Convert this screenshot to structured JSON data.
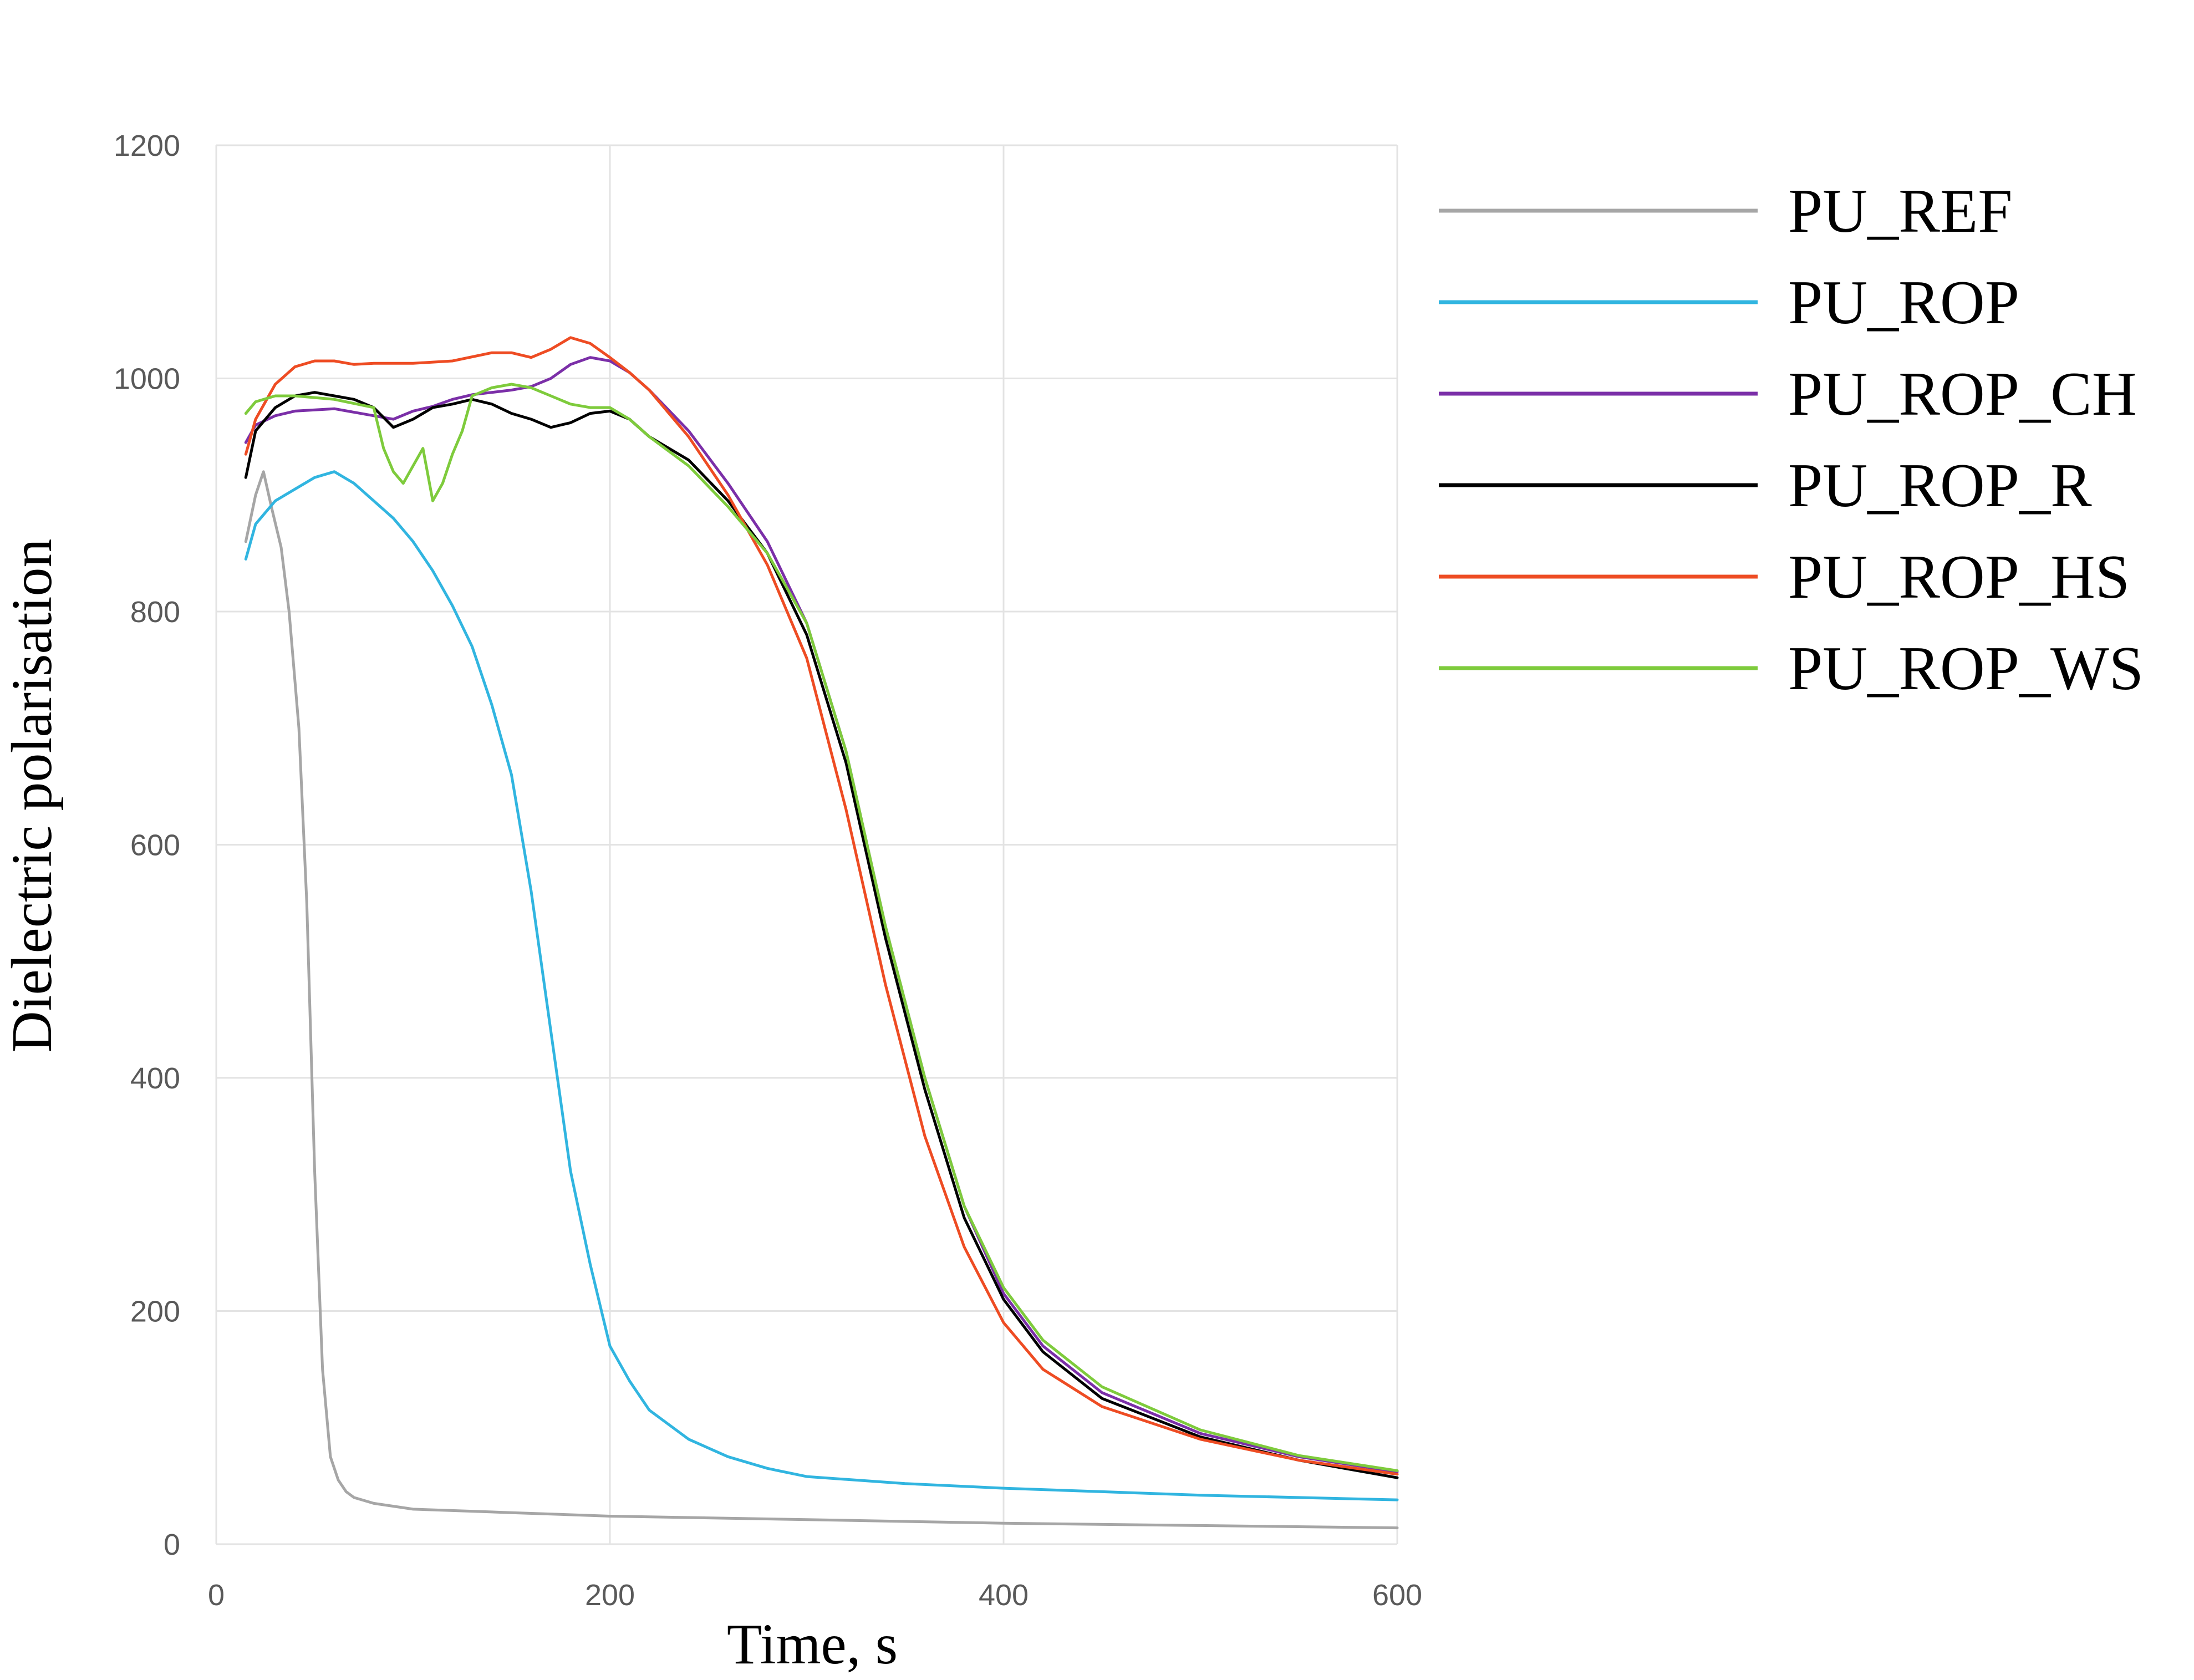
{
  "chart_data": {
    "type": "line",
    "title": "",
    "xlabel": "Time, s",
    "ylabel": "Dielectric polarisation",
    "xlim": [
      0,
      600
    ],
    "ylim": [
      0,
      1200
    ],
    "xticks": [
      0,
      200,
      400,
      600
    ],
    "yticks": [
      0,
      200,
      400,
      600,
      800,
      1000,
      1200
    ],
    "grid": true,
    "legend_position": "right",
    "series": [
      {
        "name": "PU_REF",
        "color": "#a6a6a6",
        "x": [
          15,
          20,
          24,
          28,
          33,
          37,
          42,
          46,
          50,
          54,
          58,
          62,
          66,
          70,
          80,
          100,
          150,
          200,
          300,
          400,
          500,
          600
        ],
        "y": [
          860,
          900,
          920,
          890,
          855,
          800,
          700,
          550,
          320,
          150,
          75,
          55,
          45,
          40,
          35,
          30,
          27,
          24,
          21,
          18,
          16,
          14
        ]
      },
      {
        "name": "PU_ROP",
        "color": "#31b5e0",
        "x": [
          15,
          20,
          30,
          40,
          50,
          60,
          70,
          80,
          90,
          100,
          110,
          120,
          130,
          140,
          150,
          155,
          160,
          165,
          170,
          175,
          180,
          190,
          200,
          210,
          220,
          240,
          260,
          280,
          300,
          350,
          400,
          450,
          500,
          550,
          600
        ],
        "y": [
          845,
          875,
          895,
          905,
          915,
          920,
          910,
          895,
          880,
          860,
          835,
          805,
          770,
          720,
          660,
          610,
          560,
          500,
          440,
          380,
          320,
          240,
          170,
          140,
          115,
          90,
          75,
          65,
          58,
          52,
          48,
          45,
          42,
          40,
          38
        ]
      },
      {
        "name": "PU_ROP_CH",
        "color": "#7b2fa8",
        "x": [
          15,
          20,
          30,
          40,
          60,
          80,
          90,
          100,
          110,
          120,
          130,
          140,
          150,
          160,
          170,
          180,
          190,
          200,
          210,
          220,
          240,
          260,
          280,
          300,
          320,
          340,
          360,
          380,
          400,
          420,
          450,
          500,
          550,
          600
        ],
        "y": [
          945,
          960,
          968,
          972,
          974,
          968,
          965,
          972,
          976,
          982,
          986,
          988,
          990,
          993,
          1000,
          1012,
          1018,
          1015,
          1005,
          990,
          955,
          910,
          860,
          790,
          680,
          530,
          400,
          290,
          215,
          170,
          130,
          95,
          75,
          62
        ]
      },
      {
        "name": "PU_ROP_R",
        "color": "#000000",
        "x": [
          15,
          20,
          30,
          40,
          50,
          60,
          70,
          80,
          90,
          100,
          110,
          120,
          130,
          140,
          150,
          160,
          170,
          180,
          190,
          200,
          210,
          220,
          240,
          260,
          280,
          300,
          320,
          340,
          360,
          380,
          400,
          420,
          450,
          500,
          550,
          600
        ],
        "y": [
          915,
          955,
          975,
          985,
          988,
          985,
          982,
          975,
          958,
          965,
          975,
          978,
          982,
          978,
          970,
          965,
          958,
          962,
          970,
          972,
          965,
          950,
          930,
          895,
          850,
          780,
          670,
          520,
          390,
          280,
          210,
          165,
          125,
          92,
          72,
          57
        ]
      },
      {
        "name": "PU_ROP_HS",
        "color": "#ee4c23",
        "x": [
          15,
          20,
          30,
          40,
          50,
          60,
          70,
          80,
          100,
          120,
          140,
          150,
          160,
          170,
          180,
          190,
          200,
          210,
          220,
          240,
          260,
          280,
          300,
          320,
          340,
          360,
          380,
          400,
          420,
          450,
          500,
          550,
          600
        ],
        "y": [
          935,
          965,
          995,
          1010,
          1015,
          1015,
          1012,
          1013,
          1013,
          1015,
          1022,
          1022,
          1018,
          1025,
          1035,
          1030,
          1018,
          1005,
          990,
          950,
          900,
          840,
          760,
          630,
          480,
          350,
          255,
          190,
          150,
          118,
          90,
          72,
          60
        ]
      },
      {
        "name": "PU_ROP_WS",
        "color": "#7ecb3c",
        "x": [
          15,
          20,
          30,
          40,
          60,
          80,
          85,
          90,
          95,
          100,
          105,
          110,
          115,
          120,
          125,
          130,
          140,
          150,
          160,
          170,
          180,
          190,
          200,
          210,
          220,
          240,
          260,
          280,
          300,
          320,
          340,
          360,
          380,
          400,
          420,
          450,
          500,
          550,
          600
        ],
        "y": [
          970,
          980,
          985,
          985,
          982,
          975,
          940,
          920,
          910,
          925,
          940,
          895,
          910,
          935,
          955,
          985,
          992,
          995,
          992,
          985,
          978,
          975,
          975,
          965,
          950,
          925,
          890,
          850,
          790,
          680,
          530,
          400,
          290,
          220,
          175,
          135,
          98,
          76,
          63
        ]
      }
    ]
  }
}
